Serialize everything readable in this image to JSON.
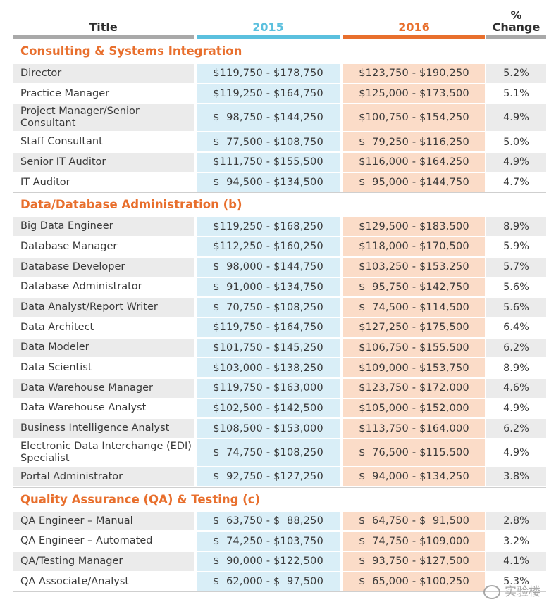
{
  "header": {
    "title": "Title",
    "y2015": "2015",
    "y2016": "2016",
    "pct_line1": "%",
    "pct_line2": "Change"
  },
  "sections": [
    {
      "title": "Consulting & Systems Integration",
      "rows": [
        {
          "title": "Director",
          "v2015": "$119,750 - $178,750",
          "v2016": "$123,750 - $190,250",
          "change": "5.2%"
        },
        {
          "title": "Practice Manager",
          "v2015": "$119,250 - $164,750",
          "v2016": "$125,000 - $173,500",
          "change": "5.1%"
        },
        {
          "title": "Project Manager/Senior Consultant",
          "v2015": "$  98,750 - $144,250",
          "v2016": "$100,750 - $154,250",
          "change": "4.9%",
          "tall": true
        },
        {
          "title": "Staff Consultant",
          "v2015": "$  77,500 - $108,750",
          "v2016": "$  79,250 - $116,250",
          "change": "5.0%"
        },
        {
          "title": "Senior IT Auditor",
          "v2015": "$111,750 - $155,500",
          "v2016": "$116,000 - $164,250",
          "change": "4.9%"
        },
        {
          "title": "IT Auditor",
          "v2015": "$  94,500 - $134,500",
          "v2016": "$  95,000 - $144,750",
          "change": "4.7%"
        }
      ]
    },
    {
      "title": "Data/Database Administration (b)",
      "rows": [
        {
          "title": "Big Data Engineer",
          "v2015": "$119,250 - $168,250",
          "v2016": "$129,500 - $183,500",
          "change": "8.9%"
        },
        {
          "title": "Database Manager",
          "v2015": "$112,250 - $160,250",
          "v2016": "$118,000 - $170,500",
          "change": "5.9%"
        },
        {
          "title": "Database Developer",
          "v2015": "$  98,000 - $144,750",
          "v2016": "$103,250 - $153,250",
          "change": "5.7%"
        },
        {
          "title": "Database Administrator",
          "v2015": "$  91,000 - $134,750",
          "v2016": "$  95,750 - $142,750",
          "change": "5.6%"
        },
        {
          "title": "Data Analyst/Report Writer",
          "v2015": "$  70,750 - $108,250",
          "v2016": "$  74,500 - $114,500",
          "change": "5.6%"
        },
        {
          "title": "Data Architect",
          "v2015": "$119,750 - $164,750",
          "v2016": "$127,250 - $175,500",
          "change": "6.4%"
        },
        {
          "title": "Data Modeler",
          "v2015": "$101,750 - $145,250",
          "v2016": "$106,750 - $155,500",
          "change": "6.2%"
        },
        {
          "title": "Data Scientist",
          "v2015": "$103,000 - $138,250",
          "v2016": "$109,000 - $153,750",
          "change": "8.9%"
        },
        {
          "title": "Data Warehouse Manager",
          "v2015": "$119,750 - $163,000",
          "v2016": "$123,750 - $172,000",
          "change": "4.6%"
        },
        {
          "title": "Data Warehouse Analyst",
          "v2015": "$102,500 - $142,500",
          "v2016": "$105,000 - $152,000",
          "change": "4.9%"
        },
        {
          "title": "Business Intelligence Analyst",
          "v2015": "$108,500 - $153,000",
          "v2016": "$113,750 - $164,000",
          "change": "6.2%"
        },
        {
          "title": "Electronic Data Interchange (EDI) Specialist",
          "v2015": "$  74,750 - $108,250",
          "v2016": "$  76,500 - $115,500",
          "change": "4.9%",
          "tall": true
        },
        {
          "title": "Portal Administrator",
          "v2015": "$  92,750 - $127,250",
          "v2016": "$  94,000 - $134,250",
          "change": "3.8%"
        }
      ]
    },
    {
      "title": "Quality Assurance (QA) & Testing (c)",
      "rows": [
        {
          "title": "QA Engineer – Manual",
          "v2015": "$  63,750 - $  88,250",
          "v2016": "$  64,750 - $  91,500",
          "change": "2.8%"
        },
        {
          "title": "QA Engineer – Automated",
          "v2015": "$  74,250 - $103,750",
          "v2016": "$  74,750 - $109,000",
          "change": "3.2%"
        },
        {
          "title": "QA/Testing Manager",
          "v2015": "$  90,000 - $122,500",
          "v2016": "$  93,750 - $127,500",
          "change": "4.1%"
        },
        {
          "title": "QA Associate/Analyst",
          "v2015": "$  62,000 - $  97,500",
          "v2016": "$  65,000 - $100,250",
          "change": "5.3%"
        }
      ]
    }
  ],
  "watermark": "实验楼"
}
